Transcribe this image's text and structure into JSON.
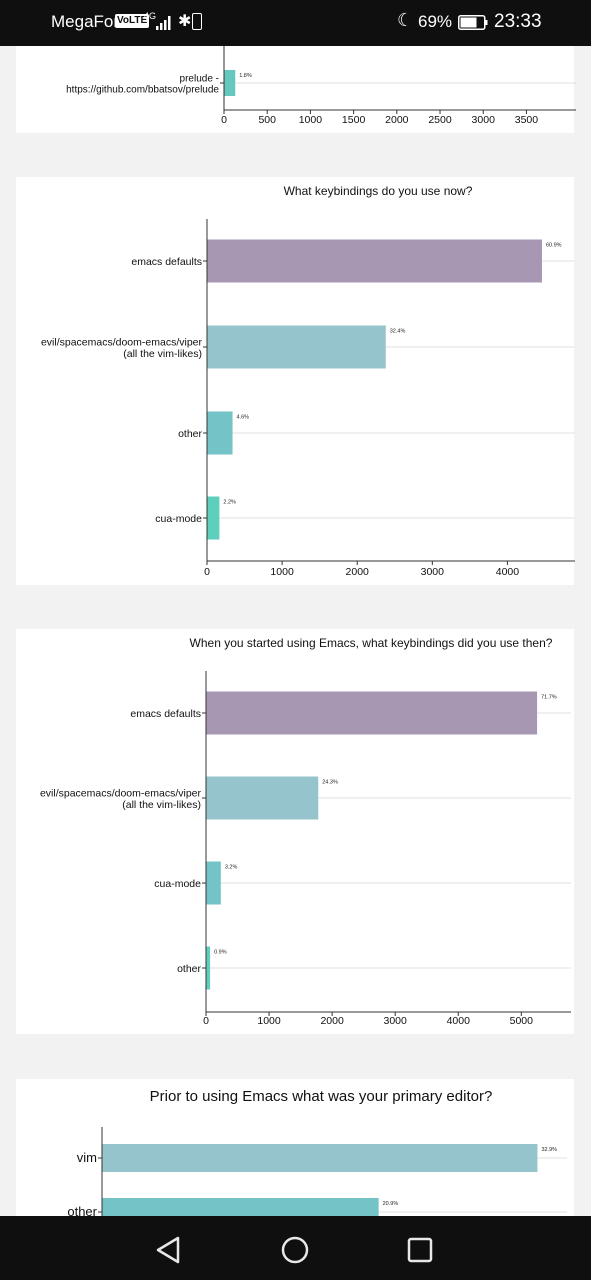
{
  "status_bar": {
    "carrier": "MegaFon",
    "volte": "VoLTE",
    "network": "4G",
    "battery_percent": "69%",
    "time": "23:33"
  },
  "nav_bar": {
    "back_icon": "back-triangle-icon",
    "home_icon": "home-circle-icon",
    "recents_icon": "recents-square-icon"
  },
  "colors": {
    "purple": "#a797b3",
    "blue": "#95c4cd",
    "teal1": "#74c3c7",
    "teal2": "#5ecfbd",
    "teal3": "#66c7bf"
  },
  "chart_data": [
    {
      "type": "bar",
      "orientation": "horizontal",
      "title": "",
      "categories": [
        "prelude -\nhttps://github.com/bbatsov/prelude"
      ],
      "values": [
        130
      ],
      "labels": [
        "1.8%"
      ],
      "xlim": [
        0,
        3900
      ],
      "xticks": [
        0,
        500,
        1000,
        1500,
        2000,
        2500,
        3000,
        3500
      ]
    },
    {
      "type": "bar",
      "orientation": "horizontal",
      "title": "What keybindings do you use now?",
      "categories": [
        "emacs defaults",
        "evil/spacemacs/doom-emacs/viper\n(all the vim-likes)",
        "other",
        "cua-mode"
      ],
      "values": [
        4460,
        2380,
        340,
        165
      ],
      "labels": [
        "60.9%",
        "32.4%",
        "4.6%",
        "2.2%"
      ],
      "xlim": [
        0,
        4700
      ],
      "xticks": [
        0,
        1000,
        2000,
        3000,
        4000
      ]
    },
    {
      "type": "bar",
      "orientation": "horizontal",
      "title": "When you started using Emacs, what keybindings did you use then?",
      "categories": [
        "emacs defaults",
        "evil/spacemacs/doom-emacs/viper\n(all the vim-likes)",
        "cua-mode",
        "other"
      ],
      "values": [
        5250,
        1780,
        235,
        65
      ],
      "labels": [
        "71.7%",
        "24.3%",
        "3.2%",
        "0.9%"
      ],
      "xlim": [
        0,
        5550
      ],
      "xticks": [
        0,
        1000,
        2000,
        3000,
        4000,
        5000
      ]
    },
    {
      "type": "bar",
      "orientation": "horizontal",
      "title": "Prior to using Emacs what was your primary editor?",
      "categories": [
        "vim",
        "other"
      ],
      "values": [
        32.9,
        20.9
      ],
      "labels": [
        "32.9%",
        "20.9%"
      ],
      "xlim": [
        0,
        34
      ]
    }
  ]
}
